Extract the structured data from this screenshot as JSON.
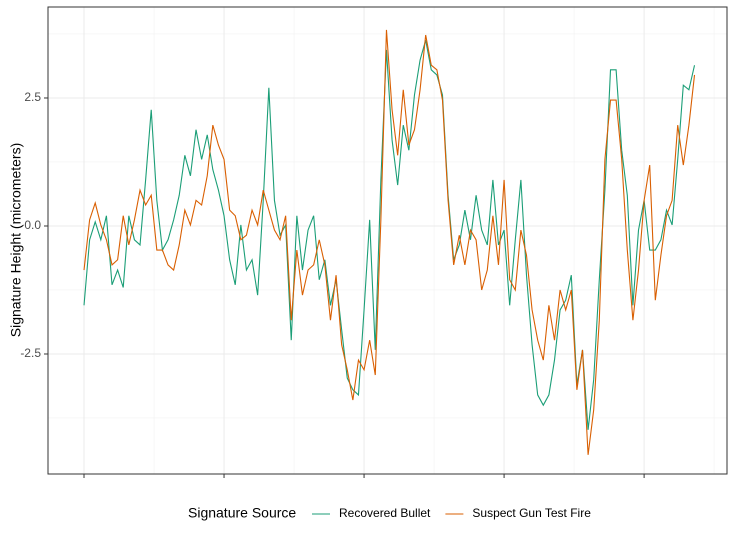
{
  "chart_data": {
    "type": "line",
    "y_label": "Signature Height (micrometers)",
    "legend_title": "Signature Source",
    "legend_position": "bottom",
    "grid": true,
    "ylim": [
      -4.844,
      4.277
    ],
    "yticks": [
      -2.5,
      {
        "value": 0,
        "label": "0.0"
      },
      2.5
    ],
    "xlim": [
      -6.43,
      114.8
    ],
    "xticks": [
      0,
      25,
      50,
      75,
      100
    ],
    "x": [
      0,
      1,
      2,
      3,
      4,
      5,
      6,
      7,
      8,
      9,
      10,
      11,
      12,
      13,
      14,
      15,
      16,
      17,
      18,
      19,
      20,
      21,
      22,
      23,
      24,
      25,
      26,
      27,
      28,
      29,
      30,
      31,
      32,
      33,
      34,
      35,
      36,
      37,
      38,
      39,
      40,
      41,
      42,
      43,
      44,
      45,
      46,
      47,
      48,
      49,
      50,
      51,
      52,
      53,
      54,
      55,
      56,
      57,
      58,
      59,
      60,
      61,
      62,
      63,
      64,
      65,
      66,
      67,
      68,
      69,
      70,
      71,
      72,
      73,
      74,
      75,
      76,
      77,
      78,
      79,
      80,
      81,
      82,
      83,
      84,
      85,
      86,
      87,
      88,
      89,
      90,
      91,
      92,
      93,
      94,
      95,
      96,
      97,
      98,
      99,
      100,
      101,
      102,
      103,
      104,
      105,
      106,
      107,
      108,
      109
    ],
    "series": [
      {
        "name": "Recovered Bullet",
        "color": "#1b9e77",
        "values": [
          -1.55,
          -0.27,
          0.08,
          -0.27,
          0.2,
          -1.15,
          -0.86,
          -1.2,
          0.2,
          -0.27,
          -0.37,
          0.9,
          2.27,
          0.5,
          -0.47,
          -0.27,
          0.12,
          0.6,
          1.38,
          0.98,
          1.88,
          1.3,
          1.78,
          1.1,
          0.7,
          0.2,
          -0.66,
          -1.15,
          0.02,
          -0.86,
          -0.66,
          -1.35,
          0.5,
          2.7,
          0.5,
          -0.18,
          0.02,
          -2.23,
          0.2,
          -0.86,
          -0.08,
          0.2,
          -1.05,
          -0.66,
          -1.55,
          -1.05,
          -2.03,
          -2.97,
          -3.2,
          -3.3,
          -1.64,
          0.12,
          -2.42,
          0.9,
          3.44,
          1.68,
          0.8,
          1.97,
          1.48,
          2.56,
          3.24,
          3.63,
          3.05,
          2.95,
          2.56,
          0.6,
          -0.66,
          -0.37,
          0.31,
          -0.27,
          0.6,
          -0.08,
          -0.37,
          0.9,
          -0.37,
          -0.08,
          -1.55,
          -0.27,
          0.9,
          -0.96,
          -2.32,
          -3.3,
          -3.5,
          -3.3,
          -2.62,
          -1.64,
          -1.45,
          -0.96,
          -3.1,
          -2.42,
          -3.98,
          -3.0,
          -1.05,
          0.7,
          3.05,
          3.05,
          1.48,
          0.6,
          -1.55,
          -0.08,
          0.5,
          -0.47,
          -0.47,
          -0.27,
          0.31,
          0.02,
          1.3,
          2.75,
          2.66,
          3.14
        ]
      },
      {
        "name": "Suspect Gun Test Fire",
        "color": "#d95f02",
        "values": [
          -0.86,
          0.12,
          0.45,
          0.02,
          -0.27,
          -0.76,
          -0.66,
          0.2,
          -0.37,
          0.12,
          0.7,
          0.41,
          0.6,
          -0.47,
          -0.47,
          -0.76,
          -0.86,
          -0.37,
          0.31,
          0.02,
          0.5,
          0.41,
          0.98,
          1.97,
          1.58,
          1.3,
          0.31,
          0.2,
          -0.27,
          -0.18,
          0.31,
          0.02,
          0.7,
          0.31,
          -0.08,
          -0.27,
          0.2,
          -1.84,
          -0.47,
          -1.35,
          -0.86,
          -0.76,
          -0.27,
          -0.76,
          -1.84,
          -0.96,
          -2.32,
          -2.81,
          -3.4,
          -2.62,
          -2.81,
          -2.23,
          -2.91,
          0.12,
          3.83,
          2.27,
          1.38,
          2.66,
          1.58,
          1.88,
          2.66,
          3.73,
          3.14,
          3.05,
          2.46,
          0.5,
          -0.76,
          -0.18,
          -0.76,
          -0.08,
          -0.27,
          -1.25,
          -0.86,
          0.2,
          -0.76,
          0.9,
          -1.05,
          -1.25,
          -0.08,
          -0.57,
          -1.64,
          -2.23,
          -2.62,
          -1.55,
          -2.23,
          -1.25,
          -1.64,
          -1.25,
          -3.2,
          -2.42,
          -4.47,
          -3.59,
          -1.84,
          1.3,
          2.46,
          2.46,
          1.3,
          -0.47,
          -1.84,
          -0.86,
          0.5,
          1.19,
          -1.45,
          -0.57,
          0.2,
          0.5,
          1.97,
          1.19,
          1.97,
          2.95
        ]
      }
    ]
  }
}
